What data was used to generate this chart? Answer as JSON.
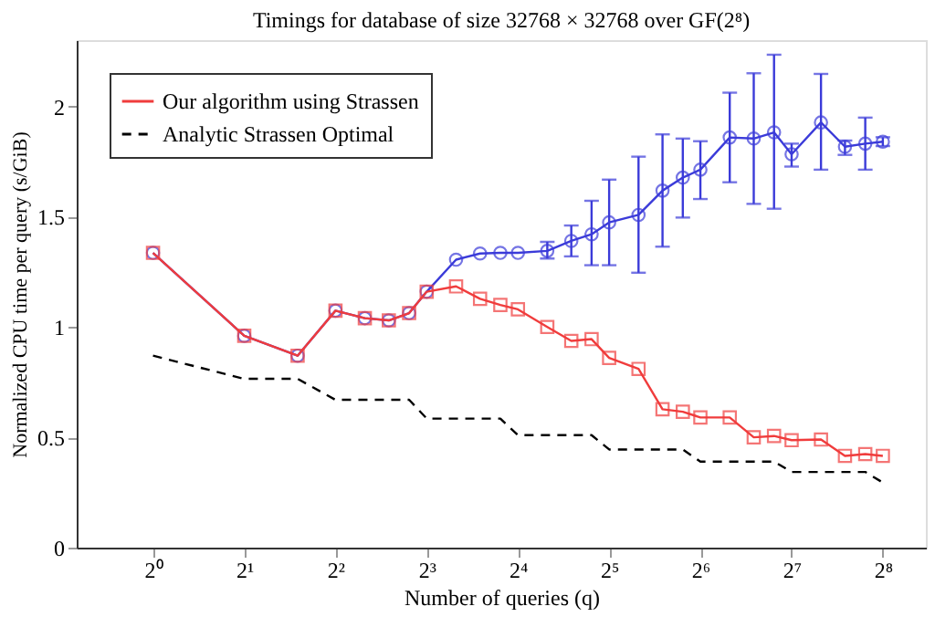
{
  "chart_data": {
    "type": "line",
    "title": "Timings for database of size 32768 × 32768 over GF(2⁸)",
    "xlabel": "Number of queries (q)",
    "ylabel": "Normalized CPU time per query (s/GiB)",
    "log": "x",
    "xlim": [
      0.56,
      355
    ],
    "ylim": [
      0,
      2.3
    ],
    "xticks": [
      {
        "value": 1,
        "label": "2⁰"
      },
      {
        "value": 2,
        "label": "2¹"
      },
      {
        "value": 4,
        "label": "2²"
      },
      {
        "value": 8,
        "label": "2³"
      },
      {
        "value": 16,
        "label": "2⁴"
      },
      {
        "value": 32,
        "label": "2⁵"
      },
      {
        "value": 64,
        "label": "2⁶"
      },
      {
        "value": 128,
        "label": "2⁷"
      },
      {
        "value": 256,
        "label": "2⁸"
      }
    ],
    "yticks": [
      0,
      0.5,
      1,
      1.5,
      2
    ],
    "grid": false,
    "legend": "top left",
    "series": [
      {
        "color": "#3b3bd9",
        "marker": "circle",
        "line_style": "solid",
        "x": [
          1,
          2,
          3,
          4,
          5,
          6,
          7,
          8,
          10,
          12,
          14,
          16,
          20,
          24,
          28,
          32,
          40,
          48,
          56,
          64,
          80,
          96,
          112,
          128,
          160,
          192,
          224,
          256
        ],
        "values": [
          1.336,
          0.96,
          0.87,
          1.074,
          1.04,
          1.03,
          1.063,
          1.16,
          1.305,
          1.333,
          1.336,
          1.336,
          1.345,
          1.39,
          1.42,
          1.474,
          1.508,
          1.618,
          1.677,
          1.713,
          1.859,
          1.854,
          1.882,
          1.783,
          1.927,
          1.817,
          1.831,
          1.84
        ],
        "errors": [
          null,
          null,
          null,
          null,
          null,
          null,
          null,
          null,
          null,
          null,
          null,
          null,
          [
            1.31,
            1.386
          ],
          [
            1.32,
            1.46
          ],
          [
            1.28,
            1.572
          ],
          [
            1.28,
            1.668
          ],
          [
            1.246,
            1.772
          ],
          [
            1.364,
            1.873
          ],
          [
            1.496,
            1.854
          ],
          [
            1.58,
            1.842
          ],
          [
            1.656,
            2.062
          ],
          [
            1.558,
            2.15
          ],
          [
            1.536,
            2.234
          ],
          [
            1.727,
            1.831
          ],
          [
            1.713,
            2.147
          ],
          [
            1.78,
            1.845
          ],
          [
            1.713,
            1.949
          ],
          [
            1.82,
            1.86
          ]
        ]
      },
      {
        "name": "Our algorithm using Strassen",
        "color": "#f03c3c",
        "marker": "square",
        "line_style": "solid",
        "x": [
          1,
          2,
          3,
          4,
          5,
          6,
          7,
          8,
          10,
          12,
          14,
          16,
          20,
          24,
          28,
          32,
          40,
          48,
          56,
          64,
          80,
          96,
          112,
          128,
          160,
          192,
          224,
          256
        ],
        "values": [
          1.336,
          0.96,
          0.87,
          1.074,
          1.04,
          1.03,
          1.063,
          1.16,
          1.184,
          1.128,
          1.1,
          1.08,
          1.0,
          0.937,
          0.945,
          0.86,
          0.81,
          0.627,
          0.616,
          0.59,
          0.59,
          0.5,
          0.506,
          0.487,
          0.49,
          0.416,
          0.424,
          0.416
        ]
      },
      {
        "name": "Analytic Strassen Optimal",
        "color": "#000000",
        "marker": "none",
        "line_style": "dashed",
        "x": [
          1,
          2,
          3,
          4,
          7,
          8,
          14,
          16,
          28,
          32,
          56,
          64,
          112,
          128,
          224,
          256
        ],
        "values": [
          0.87,
          0.765,
          0.765,
          0.67,
          0.67,
          0.585,
          0.585,
          0.51,
          0.51,
          0.445,
          0.445,
          0.39,
          0.39,
          0.343,
          0.343,
          0.295
        ]
      }
    ]
  }
}
